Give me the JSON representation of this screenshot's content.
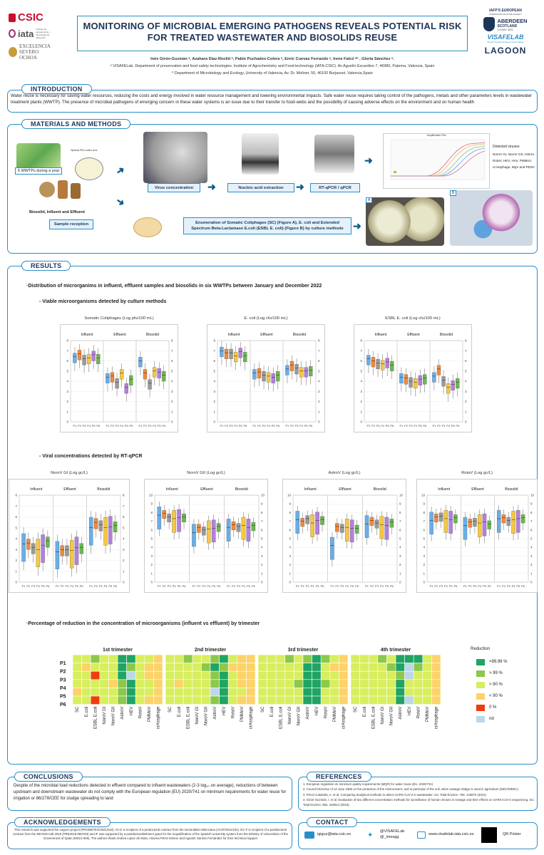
{
  "header": {
    "title_line1": "MONITORING OF MICROBIAL EMERGING PATHOGENS REVEALS POTENTIAL RISK",
    "title_line2": "FOR TREATED WASTEWATER AND BIOSOLIDS REUSE",
    "authors": "Inés Girón-Guzmán ᵃ, Azahara Díaz-Reolid ᵃ, Pablo Puchades-Colera ᵃ, Enric Cuevas Ferrando ᵃ, Irene Falcó ᵃᵇ , Gloria Sánchez ᵃ.",
    "affiliation_a": "ᵃ VISAFELab. Department of preservation and food safety technologies. Institute of Agrochemistry and Food technology (IATA-CSIC). Av Agustín Escardino 7, 46980, Paterna, Valencia, Spain",
    "affiliation_b": "ᵇ Department of Microbiology and Ecology, University of Valencia, Av. Dr. Moliner, 50, 46100 Burjassot, Valencia,Spain"
  },
  "logos_left": {
    "csic": "CSIC",
    "iata": "iata",
    "iata_sub": "Instituto de Agroquímica y Tecnología de Alimentos",
    "excelencia1": "EXCELENCIA",
    "excelencia2": "SEVERO",
    "excelencia3": "OCHOA"
  },
  "logos_right": {
    "iafp1": "IAFP'S EUROPEAN",
    "iafp2": "SYMPOSIUM ON FOOD SAFETY",
    "aberdeen": "ABERDEEN",
    "scotland": "SCOTLAND",
    "dates": "3-5 MAY 2023",
    "visafelab": "VISAFELAB",
    "visafelab_sub": "Environmental Virology & Food Safety",
    "lagoon": "LAGOON"
  },
  "introduction": {
    "heading": "INTRODUCTION",
    "text": "Water reuse is necessary for saving water resources, reducing the costs and energy involved in water resource management and lowering environmental impacts. Safe water reuse requires taking control of the pathogens, metals and other parameters levels in wastewater treatment plants (WWTP). The presence of microbial pathogens of emerging concern in these water systems is an issue due to their transfer to food-webs and the possibility of causing adverse effects on the environment and on human health"
  },
  "methods": {
    "heading": "MATERIALS AND METHODS",
    "wwtps": "6 WWTPs during a year",
    "sample_types": "Biosolid, Influent and Effluent",
    "sample_reception": "Sample reception",
    "virus_conc": "Virus concentration",
    "nucleic": "Nucleic acid extraction",
    "rtqpcr": "RT-qPCR / qPCR",
    "detected_title": "Detected viruses:",
    "detected_list": "NoroV GI, NoroV GII, AstroV, RotaV, HEV, HAV, PMMoV, crAssphage, MgV and PEDV",
    "enumeration": "Enumeration of Somatic Coliphages (SC) (Figure A), E. coli and Extended Spectrum Beta-Lactamase E.coli (ESBL E. coli) (Figure B) by culture methods",
    "fig_a": "A",
    "fig_b": "B",
    "amp_title": "Amplification Plot",
    "small_note": "Optional PEG control virus"
  },
  "results": {
    "heading": "RESULTS",
    "distribution": "·Distribution of microrganims in influent, effluent samples and biosolids in six WWTPs between January and December 2022",
    "viable": "- Viable microorganisms detected by culture methods",
    "viral": "- Viral concentrations detected by RT-qPCR",
    "reduction": "·Percentage of reduction in the concentration of microorganisms (influent vs effluent) by trimester",
    "group_labels": [
      "Influent",
      "Effluent",
      "Biosolid"
    ],
    "plant_axis": "P1 P2 P3 P4 P5 P6"
  },
  "chart_data": [
    {
      "type": "box",
      "title": "Somatic Coliphages (Log pfu/100 mL)",
      "groups": [
        "Influent",
        "Effluent",
        "Biosolid"
      ],
      "categories": [
        "P1",
        "P2",
        "P3",
        "P4",
        "P5",
        "P6"
      ],
      "ylim": [
        0,
        8
      ],
      "medians": [
        [
          6.4,
          6.7,
          6.2,
          6.3,
          6.6,
          6.3
        ],
        [
          4.4,
          4.5,
          3.9,
          4.8,
          3.4,
          4.2
        ],
        [
          6.0,
          4.8,
          3.8,
          5.0,
          4.9,
          4.6
        ]
      ]
    },
    {
      "type": "box",
      "title": "E. coli (Log cfu/100 mL)",
      "groups": [
        "Influent",
        "Effluent",
        "Biosolid"
      ],
      "categories": [
        "P1",
        "P2",
        "P3",
        "P4",
        "P5",
        "P6"
      ],
      "ylim": [
        0,
        8
      ],
      "medians": [
        [
          7.0,
          6.8,
          6.8,
          6.5,
          6.9,
          6.5
        ],
        [
          4.8,
          4.9,
          4.6,
          4.5,
          4.4,
          4.6
        ],
        [
          5.2,
          5.6,
          5.3,
          5.0,
          5.0,
          5.1
        ]
      ]
    },
    {
      "type": "box",
      "title": "ESBL E. coli (Log cfu/100 mL)",
      "groups": [
        "Influent",
        "Effluent",
        "Biosolid"
      ],
      "categories": [
        "P1",
        "P2",
        "P3",
        "P4",
        "P5",
        "P6"
      ],
      "ylim": [
        0,
        8
      ],
      "medians": [
        [
          6.2,
          6.0,
          5.8,
          5.7,
          5.9,
          5.6
        ],
        [
          4.4,
          4.3,
          4.0,
          3.9,
          4.2,
          4.3
        ],
        [
          4.5,
          5.2,
          4.1,
          3.4,
          3.7,
          3.9
        ]
      ]
    },
    {
      "type": "box",
      "title": "NoroV GI (Log gc/L)",
      "groups": [
        "Influent",
        "Effluent",
        "Biosolid"
      ],
      "categories": [
        "P1",
        "P2",
        "P3",
        "P4",
        "P5",
        "P6"
      ],
      "ylim": [
        0,
        8
      ],
      "medians": [
        [
          3.5,
          3.6,
          3.2,
          3.0,
          3.4,
          3.8
        ],
        [
          2.8,
          3.0,
          3.0,
          2.9,
          3.2,
          3.2
        ],
        [
          5.0,
          5.5,
          5.3,
          5.0,
          5.1,
          5.2
        ]
      ]
    },
    {
      "type": "box",
      "title": "NoroV GII (Log gc/L)",
      "groups": [
        "Influent",
        "Effluent",
        "Biosolid"
      ],
      "categories": [
        "P1",
        "P2",
        "P3",
        "P4",
        "P5",
        "P6"
      ],
      "ylim": [
        0,
        10
      ],
      "medians": [
        [
          7.7,
          7.9,
          7.5,
          7.3,
          7.4,
          7.5
        ],
        [
          5.7,
          6.3,
          6.0,
          6.1,
          6.2,
          6.4
        ],
        [
          6.3,
          6.6,
          6.4,
          6.5,
          6.3,
          6.5
        ]
      ]
    },
    {
      "type": "box",
      "title": "AstroV (Log gc/L)",
      "groups": [
        "Influent",
        "Effluent",
        "Biosolid"
      ],
      "categories": [
        "P1",
        "P2",
        "P3",
        "P4",
        "P5",
        "P6"
      ],
      "ylim": [
        0,
        10
      ],
      "medians": [
        [
          7.2,
          7.0,
          7.3,
          6.8,
          7.1,
          7.2
        ],
        [
          4.2,
          6.4,
          6.3,
          6.3,
          6.2,
          6.2
        ],
        [
          6.7,
          7.1,
          6.8,
          6.6,
          6.5,
          6.9
        ]
      ]
    },
    {
      "type": "box",
      "title": "RotaV (Log gc/L)",
      "groups": [
        "Influent",
        "Effluent",
        "Biosolid"
      ],
      "categories": [
        "P1",
        "P2",
        "P3",
        "P4",
        "P5",
        "P6"
      ],
      "ylim": [
        0,
        10
      ],
      "medians": [
        [
          7.1,
          7.5,
          7.6,
          7.3,
          7.2,
          7.4
        ],
        [
          6.5,
          6.9,
          7.0,
          6.8,
          6.9,
          6.7
        ],
        [
          7.3,
          7.4,
          7.1,
          7.2,
          7.3,
          7.4
        ]
      ]
    },
    {
      "type": "heatmap",
      "title": "Percentage of reduction by trimester",
      "trimesters": [
        "1st trimester",
        "2nd trimester",
        "3rd trimester",
        "4th trimester"
      ],
      "rows": [
        "P1",
        "P2",
        "P3",
        "P4",
        "P5",
        "P6"
      ],
      "columns": [
        "SC",
        "E.coli",
        "ESBL E.coli",
        "NoroV GI",
        "NoroV GII",
        "AstroV",
        "HEV",
        "RotaV",
        "PMMoV",
        "crAssphage"
      ],
      "legend_title": "Reduction",
      "legend": [
        ">99.99 %",
        "> 99 %",
        "> 90 %",
        "< 90 %",
        "0 %",
        "nd"
      ],
      "legend_colors": [
        "#1fa463",
        "#8cc84b",
        "#d8ee5e",
        "#fdd268",
        "#ee3d14",
        "#bcd6ea"
      ]
    }
  ],
  "heat_values": [
    [
      [
        2,
        2,
        1,
        2,
        2,
        0,
        0,
        2,
        2,
        3
      ],
      [
        2,
        3,
        2,
        2,
        2,
        0,
        1,
        2,
        3,
        3
      ],
      [
        2,
        2,
        4,
        2,
        2,
        0,
        5,
        2,
        3,
        3
      ],
      [
        2,
        2,
        2,
        2,
        3,
        1,
        0,
        2,
        2,
        3
      ],
      [
        3,
        2,
        2,
        2,
        2,
        1,
        0,
        2,
        2,
        3
      ],
      [
        2,
        2,
        4,
        2,
        2,
        1,
        0,
        2,
        3,
        3
      ]
    ],
    [
      [
        2,
        2,
        1,
        2,
        2,
        1,
        0,
        2,
        3,
        3
      ],
      [
        2,
        2,
        2,
        2,
        1,
        0,
        1,
        3,
        3,
        3
      ],
      [
        2,
        2,
        2,
        2,
        2,
        1,
        0,
        2,
        3,
        3
      ],
      [
        2,
        3,
        2,
        2,
        2,
        1,
        0,
        2,
        3,
        3
      ],
      [
        2,
        2,
        2,
        2,
        2,
        5,
        0,
        2,
        2,
        3
      ],
      [
        2,
        2,
        2,
        2,
        2,
        1,
        0,
        2,
        3,
        3
      ]
    ],
    [
      [
        2,
        2,
        2,
        1,
        2,
        1,
        0,
        1,
        2,
        3
      ],
      [
        2,
        2,
        2,
        2,
        2,
        0,
        0,
        2,
        3,
        3
      ],
      [
        2,
        2,
        2,
        2,
        2,
        0,
        0,
        2,
        2,
        3
      ],
      [
        2,
        2,
        2,
        2,
        1,
        0,
        0,
        1,
        2,
        3
      ],
      [
        2,
        2,
        2,
        2,
        2,
        0,
        0,
        2,
        2,
        3
      ],
      [
        2,
        2,
        2,
        2,
        2,
        0,
        0,
        2,
        2,
        3
      ]
    ],
    [
      [
        2,
        2,
        2,
        1,
        2,
        0,
        0,
        0,
        2,
        3
      ],
      [
        2,
        2,
        2,
        2,
        1,
        0,
        5,
        1,
        2,
        3
      ],
      [
        2,
        2,
        2,
        2,
        2,
        1,
        5,
        2,
        2,
        3
      ],
      [
        2,
        2,
        2,
        2,
        2,
        0,
        2,
        2,
        2,
        3
      ],
      [
        2,
        2,
        2,
        2,
        2,
        0,
        2,
        2,
        2,
        3
      ],
      [
        2,
        2,
        2,
        2,
        2,
        0,
        5,
        2,
        2,
        3
      ]
    ]
  ],
  "conclusions": {
    "heading": "CONCLUSIONS",
    "text": "Despite of the microbial load reductions detected in effluent compared to influent wastewaters (2-3 log₁₀ on average), reductions of between upstream and downstream wastewater do not comply with the European regulation (EU) 2020/741 on minimum requirements for water reuse for irrigation or 86/278/CEE for sludge spreading to land"
  },
  "references": {
    "heading": "REFERENCES",
    "items": [
      "1. European regulation on minimum quality requirements (MQR) for water reuse (EU, 2020/741)",
      "2. Council Directive of 12 June 1986 on the protection of the environment, and in particular of the soil, when sewage sludge is used in agriculture (86/278/EEC)",
      "3. Pérez-Cataluña, A. et al. Comparing analytical methods to detect SARS-CoV-2 in wastewater. Sci. Total Environ. 758, 143870 (2021)",
      "4. Girón-Guzmán, I. et al. Evaluation of two different concentration methods for surveillance of human viruses in sewage and their effects on SARS-CoV-2 sequencing. Sci. Total Environ. 862, 160914 (2023)"
    ]
  },
  "acknowledgements": {
    "heading": "ACKNOWLEDGEMENTS",
    "text": "This research was supported the Lagoon project (PROMETEO/2021/044). IG-G is recipient of a predoctoral contract from the Generalitat Valenciana (ACIF/2021/181). EC-F is recipient of a postdoctoral contract from the MICINN Call 2018 (PRE2018-083753) and IF was supported by a postdoctoralmitment grant for the requalification of the Spanish university system from the Ministry of Universities of the Government of Spain (MS21-006). The authors thank Andrea López de Mota, Arianna Pérez Esteve and Agustín Garrido Fernández for their technical support"
  },
  "contact": {
    "heading": "CONTACT",
    "email": "igiguz@iata.csic.es",
    "twitter1": "@VISAFELab",
    "twitter2": "@_imesgg",
    "website": "www.visafelab.iata.csic.es",
    "qr": "QR Póster"
  },
  "colors": {
    "accent": "#2a8fc7",
    "title": "#1d3557",
    "p1": "#6aaee8",
    "p2": "#f08a3c",
    "p3": "#9a9a9a",
    "p4": "#f5c842",
    "p5": "#b57fdc",
    "p6": "#6ab84e"
  }
}
